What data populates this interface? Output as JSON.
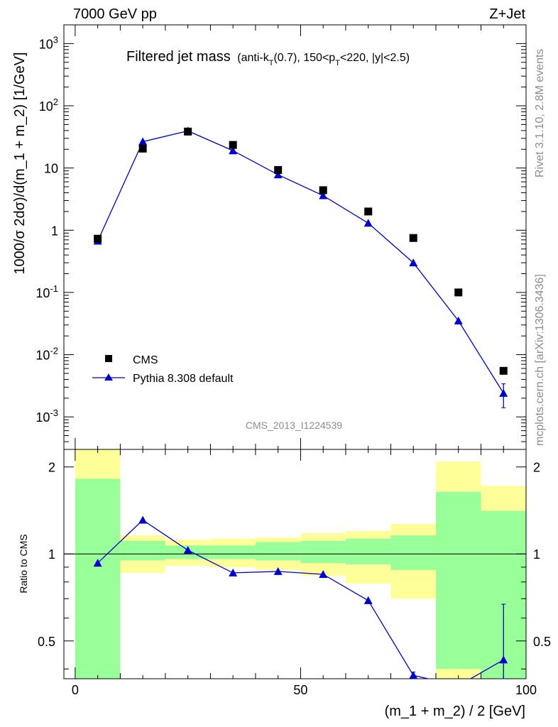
{
  "header": {
    "left": "7000 GeV pp",
    "right": "Z+Jet"
  },
  "side_text": {
    "rivet": "Rivet 3.1.10,  2.8M events",
    "mcplots": "mcplots.cern.ch [arXiv:1306.3436]"
  },
  "chart_data": [
    {
      "type": "scatter",
      "title": "Filtered jet mass",
      "title_sub": "(anti-k_T(0.7), 150<p_T<220, |y|<2.5)",
      "ylabel": "1000/σ 2dσ)/d(m_1 + m_2) [1/GeV]",
      "xlabel": "",
      "yscale": "log",
      "xlim": [
        -2.5,
        100
      ],
      "ylim": [
        0.0003,
        2000
      ],
      "yticks": [
        "10^-3",
        "10^-2",
        "10^-1",
        "1",
        "10",
        "10^2",
        "10^3"
      ],
      "watermark": "CMS_2013_I1224539",
      "legend_position": "bottom-left",
      "series": [
        {
          "name": "CMS",
          "marker": "square",
          "color": "#000000",
          "x": [
            5,
            15,
            25,
            35,
            45,
            55,
            65,
            75,
            85,
            95
          ],
          "y": [
            0.73,
            20.5,
            38.5,
            23.5,
            9.3,
            4.4,
            2.0,
            0.75,
            0.1,
            0.0055
          ]
        },
        {
          "name": "Pythia 8.308 default",
          "marker": "triangle",
          "color": "#0000cc",
          "x": [
            5,
            15,
            25,
            35,
            45,
            55,
            65,
            75,
            85,
            95
          ],
          "y": [
            0.67,
            26.5,
            39.5,
            19.0,
            7.8,
            3.6,
            1.3,
            0.3,
            0.035,
            0.0024
          ],
          "err_low": [
            0,
            0,
            0,
            0,
            0,
            0,
            0,
            0,
            0,
            0.001
          ],
          "err_high": [
            0,
            0,
            0,
            0,
            0,
            0,
            0,
            0,
            0,
            0.001
          ]
        }
      ]
    },
    {
      "type": "line",
      "ylabel": "Ratio to CMS",
      "xlabel": "(m_1 + m_2) / 2 [GeV]",
      "yscale": "log",
      "xlim": [
        -2.5,
        100
      ],
      "ylim": [
        0.37,
        2.3
      ],
      "xticks": [
        0,
        50,
        100
      ],
      "yticks": [
        0.5,
        1,
        2
      ],
      "reference_line": 1,
      "bands": [
        {
          "x_lo": 0,
          "x_hi": 10,
          "green": [
            0.0,
            1.82
          ],
          "yellow": [
            0.0,
            2.3
          ]
        },
        {
          "x_lo": 10,
          "x_hi": 20,
          "green": [
            0.95,
            1.11
          ],
          "yellow": [
            0.86,
            1.16
          ]
        },
        {
          "x_lo": 20,
          "x_hi": 30,
          "green": [
            0.96,
            1.07
          ],
          "yellow": [
            0.91,
            1.12
          ]
        },
        {
          "x_lo": 30,
          "x_hi": 40,
          "green": [
            0.96,
            1.07
          ],
          "yellow": [
            0.9,
            1.13
          ]
        },
        {
          "x_lo": 40,
          "x_hi": 50,
          "green": [
            0.95,
            1.1
          ],
          "yellow": [
            0.88,
            1.14
          ]
        },
        {
          "x_lo": 50,
          "x_hi": 60,
          "green": [
            0.93,
            1.11
          ],
          "yellow": [
            0.84,
            1.18
          ]
        },
        {
          "x_lo": 60,
          "x_hi": 70,
          "green": [
            0.92,
            1.13
          ],
          "yellow": [
            0.79,
            1.2
          ]
        },
        {
          "x_lo": 70,
          "x_hi": 80,
          "green": [
            0.88,
            1.16
          ],
          "yellow": [
            0.7,
            1.27
          ]
        },
        {
          "x_lo": 80,
          "x_hi": 90,
          "green": [
            0.4,
            1.64
          ],
          "yellow": [
            0.37,
            2.09
          ]
        },
        {
          "x_lo": 90,
          "x_hi": 100,
          "green": [
            0.0,
            1.41
          ],
          "yellow": [
            0.0,
            1.72
          ]
        }
      ],
      "series": [
        {
          "name": "Pythia 8.308 default",
          "marker": "triangle",
          "color": "#0000cc",
          "x": [
            5,
            15,
            25,
            35,
            45,
            55,
            65,
            75,
            85,
            95
          ],
          "y": [
            0.93,
            1.31,
            1.03,
            0.86,
            0.87,
            0.85,
            0.69,
            0.38,
            0.35,
            0.43
          ],
          "err_low": [
            0,
            0,
            0,
            0,
            0,
            0,
            0,
            0.01,
            0,
            0.06
          ],
          "err_high": [
            0,
            0,
            0,
            0,
            0,
            0,
            0,
            0.01,
            0,
            0.24
          ]
        }
      ]
    }
  ]
}
